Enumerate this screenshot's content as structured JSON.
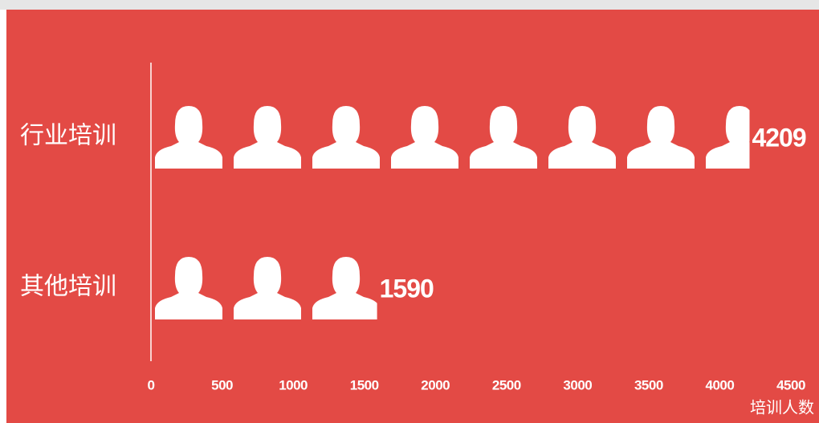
{
  "chart_data": {
    "type": "pictograph",
    "categories": [
      "行业培训",
      "其他培训"
    ],
    "values": [
      4209,
      1590
    ],
    "xlim": [
      0,
      4500
    ],
    "xticks": [
      0,
      500,
      1000,
      1500,
      2000,
      2500,
      3000,
      3500,
      4000,
      4500
    ],
    "xlabel": "培训人数",
    "color": "#ffffff",
    "background": "#e34a45"
  }
}
